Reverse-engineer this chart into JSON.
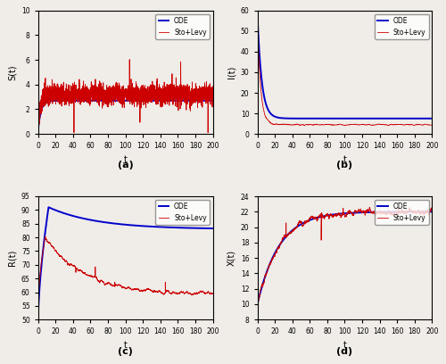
{
  "figsize": [
    5.0,
    4.08
  ],
  "dpi": 100,
  "panels": [
    {
      "label": "(a)",
      "ylabel": "S(t)",
      "xlabel": "t",
      "ylim": [
        0,
        10
      ],
      "yticks": [
        0,
        2,
        4,
        6,
        8,
        10
      ],
      "xlim": [
        0,
        200
      ],
      "xticks": [
        0,
        20,
        40,
        60,
        80,
        100,
        120,
        140,
        160,
        180,
        200
      ]
    },
    {
      "label": "(b)",
      "ylabel": "I(t)",
      "xlabel": "t",
      "ylim": [
        0,
        60
      ],
      "yticks": [
        0,
        10,
        20,
        30,
        40,
        50,
        60
      ],
      "xlim": [
        0,
        200
      ],
      "xticks": [
        0,
        20,
        40,
        60,
        80,
        100,
        120,
        140,
        160,
        180,
        200
      ]
    },
    {
      "label": "(c)",
      "ylabel": "R(t)",
      "xlabel": "t",
      "ylim": [
        50,
        95
      ],
      "yticks": [
        50,
        55,
        60,
        65,
        70,
        75,
        80,
        85,
        90,
        95
      ],
      "xlim": [
        0,
        200
      ],
      "xticks": [
        0,
        20,
        40,
        60,
        80,
        100,
        120,
        140,
        160,
        180,
        200
      ]
    },
    {
      "label": "(d)",
      "ylabel": "X(t)",
      "xlabel": "t",
      "ylim": [
        8,
        24
      ],
      "yticks": [
        8,
        10,
        12,
        14,
        16,
        18,
        20,
        22,
        24
      ],
      "xlim": [
        0,
        200
      ],
      "xticks": [
        0,
        20,
        40,
        60,
        80,
        100,
        120,
        140,
        160,
        180,
        200
      ]
    }
  ],
  "ode_color": "#0000cc",
  "stoch_color": "#cc0000",
  "ode_lw": 1.4,
  "stoch_lw": 0.6,
  "legend_labels": [
    "ODE",
    "Sto+Levy"
  ],
  "tick_fontsize": 5.5,
  "label_fontsize": 7,
  "legend_fontsize": 5.5,
  "panel_label_fontsize": 8,
  "bg_color": "#f0ece8"
}
